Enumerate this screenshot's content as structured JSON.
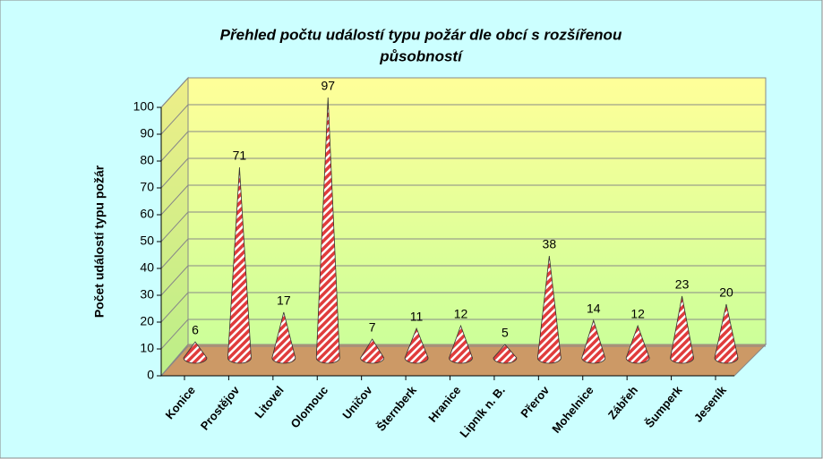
{
  "chart_data": {
    "type": "cone",
    "title_lines": [
      "Přehled počtu událostí typu požár dle obcí s rozšířenou",
      "působností"
    ],
    "y_label": "Počet událostí typu požár",
    "categories": [
      "Konice",
      "Prostějov",
      "Litovel",
      "Olomouc",
      "Uničov",
      "Šternberk",
      "Hranice",
      "Lipník n. B.",
      "Přerov",
      "Mohelnice",
      "Zábřeh",
      "Šumperk",
      "Jeseník"
    ],
    "values": [
      6,
      71,
      17,
      97,
      7,
      11,
      12,
      5,
      38,
      14,
      12,
      23,
      20
    ],
    "color": "#e03c3c",
    "ylim": [
      0,
      100
    ],
    "yticks": [
      0,
      10,
      20,
      30,
      40,
      50,
      60,
      70,
      80,
      90,
      100
    ],
    "grid": true
  }
}
